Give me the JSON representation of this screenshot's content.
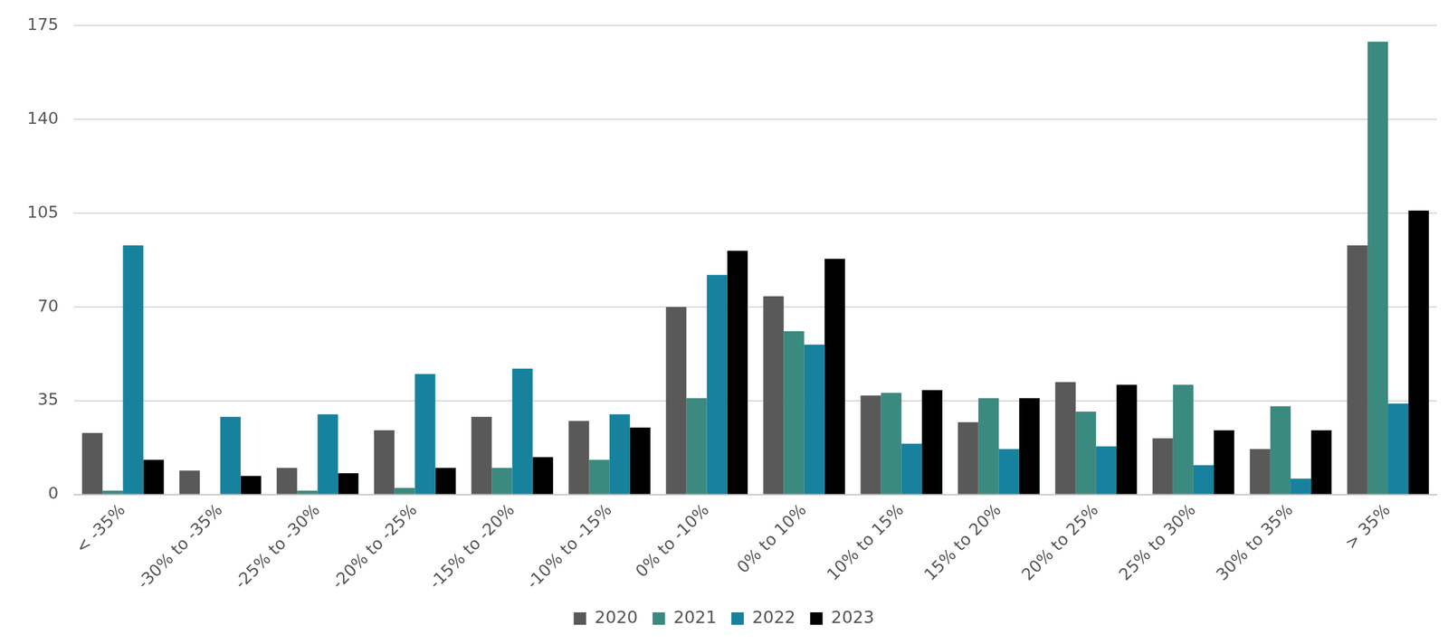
{
  "chart_data": {
    "type": "bar",
    "categories": [
      "< -35%",
      "-30% to -35%",
      "-25% to -30%",
      "-20% to -25%",
      "-15% to -20%",
      "-10% to -15%",
      "0% to -10%",
      "0% to 10%",
      "10% to 15%",
      "15% to 20%",
      "20% to 25%",
      "25% to 30%",
      "30% to 35%",
      "> 35%"
    ],
    "series": [
      {
        "name": "2020",
        "color": "#595959",
        "values": [
          23,
          9,
          10,
          24,
          29,
          27.5,
          70,
          74,
          37,
          27,
          42,
          21,
          17,
          93
        ]
      },
      {
        "name": "2021",
        "color": "#3a8a80",
        "values": [
          1.5,
          0,
          1.5,
          2.5,
          10,
          13,
          36,
          61,
          38,
          36,
          31,
          41,
          33,
          169
        ]
      },
      {
        "name": "2022",
        "color": "#16829e",
        "values": [
          93,
          29,
          30,
          45,
          47,
          30,
          82,
          56,
          19,
          17,
          18,
          11,
          6,
          34
        ]
      },
      {
        "name": "2023",
        "color": "#000000",
        "values": [
          13,
          7,
          8,
          10,
          14,
          25,
          91,
          88,
          39,
          36,
          41,
          24,
          24,
          106
        ]
      }
    ],
    "ylim": [
      0,
      175
    ],
    "yticks": [
      0,
      35,
      70,
      105,
      140,
      175
    ],
    "grid": true,
    "legend": "bottom"
  }
}
